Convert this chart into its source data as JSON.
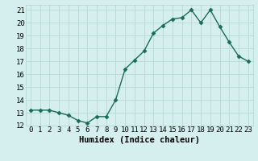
{
  "x": [
    0,
    1,
    2,
    3,
    4,
    5,
    6,
    7,
    8,
    9,
    10,
    11,
    12,
    13,
    14,
    15,
    16,
    17,
    18,
    19,
    20,
    21,
    22,
    23
  ],
  "y": [
    13.2,
    13.2,
    13.2,
    13.0,
    12.8,
    12.4,
    12.2,
    12.7,
    12.7,
    14.0,
    16.4,
    17.1,
    17.8,
    19.2,
    19.8,
    20.3,
    20.4,
    21.0,
    20.0,
    21.0,
    19.7,
    18.5,
    17.4,
    17.0
  ],
  "line_color": "#1a6b5a",
  "marker": "D",
  "marker_size": 2.5,
  "bg_color": "#d5efef",
  "grid_color": "#b8d8d8",
  "xlabel": "Humidex (Indice chaleur)",
  "xlabel_fontsize": 7.5,
  "tick_fontsize": 6.5,
  "ylim": [
    12,
    21.4
  ],
  "xlim": [
    -0.5,
    23.5
  ],
  "yticks": [
    12,
    13,
    14,
    15,
    16,
    17,
    18,
    19,
    20,
    21
  ],
  "xticks": [
    0,
    1,
    2,
    3,
    4,
    5,
    6,
    7,
    8,
    9,
    10,
    11,
    12,
    13,
    14,
    15,
    16,
    17,
    18,
    19,
    20,
    21,
    22,
    23
  ],
  "line_width": 1.0
}
